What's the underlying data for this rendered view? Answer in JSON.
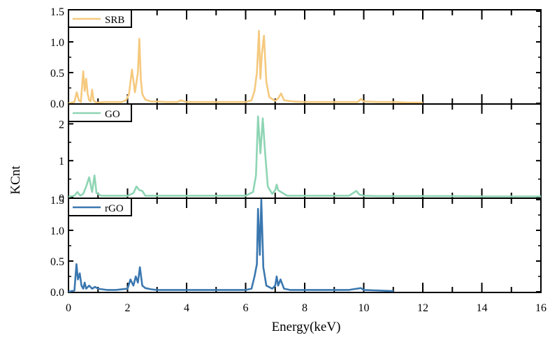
{
  "chart_data": {
    "type": "line",
    "xlabel": "Energy(keV)",
    "ylabel": "KCnt",
    "xlim": [
      0,
      16
    ],
    "x_ticks": [
      0,
      2,
      4,
      6,
      8,
      10,
      12,
      14,
      16
    ],
    "panels": [
      {
        "name": "SRB",
        "color": "#F5C97E",
        "ylim": [
          0,
          1.5
        ],
        "y_ticks": [
          0.0,
          0.5,
          1.0,
          1.5
        ],
        "y_tick_labels": [
          "0.0",
          "0.5",
          "1.0",
          "1.5"
        ],
        "legend_position": "top-left",
        "x": [
          0,
          0.2,
          0.28,
          0.35,
          0.42,
          0.5,
          0.55,
          0.6,
          0.65,
          0.7,
          0.75,
          0.8,
          0.85,
          0.9,
          1.0,
          1.2,
          1.5,
          1.8,
          1.95,
          2.05,
          2.15,
          2.25,
          2.35,
          2.4,
          2.45,
          2.5,
          2.6,
          2.8,
          3.0,
          3.3,
          3.7,
          3.8,
          4.0,
          4.5,
          5.0,
          5.5,
          6.0,
          6.2,
          6.3,
          6.38,
          6.45,
          6.5,
          6.55,
          6.62,
          6.7,
          6.8,
          7.0,
          7.1,
          7.2,
          7.3,
          7.6,
          8.0,
          8.5,
          9.0,
          9.5,
          9.8,
          9.9,
          10.0,
          10.5,
          11.0,
          11.5,
          12.0
        ],
        "y": [
          0,
          0.02,
          0.18,
          0.05,
          0.02,
          0.52,
          0.2,
          0.4,
          0.15,
          0.05,
          0.03,
          0.22,
          0.05,
          0.02,
          0.01,
          0.02,
          0.02,
          0.02,
          0.05,
          0.15,
          0.55,
          0.18,
          0.5,
          1.05,
          0.4,
          0.15,
          0.06,
          0.03,
          0.03,
          0.02,
          0.02,
          0.05,
          0.02,
          0.02,
          0.02,
          0.02,
          0.02,
          0.05,
          0.2,
          0.5,
          1.18,
          0.4,
          0.8,
          1.1,
          0.35,
          0.1,
          0.04,
          0.08,
          0.16,
          0.05,
          0.03,
          0.02,
          0.02,
          0.02,
          0.02,
          0.02,
          0.07,
          0.03,
          0.02,
          0.02,
          0.01,
          0.01
        ]
      },
      {
        "name": "GO",
        "color": "#8ED5B4",
        "ylim": [
          0,
          2.5
        ],
        "y_ticks": [
          0,
          1,
          2
        ],
        "y_tick_labels": [
          "0",
          "1",
          "2"
        ],
        "legend_position": "top-left",
        "x": [
          0,
          0.2,
          0.3,
          0.4,
          0.5,
          0.6,
          0.7,
          0.8,
          0.88,
          0.95,
          1.1,
          1.5,
          2.0,
          2.2,
          2.3,
          2.4,
          2.5,
          2.6,
          3.0,
          4.0,
          5.0,
          6.0,
          6.25,
          6.35,
          6.42,
          6.5,
          6.58,
          6.65,
          6.75,
          6.9,
          7.0,
          7.05,
          7.1,
          7.2,
          7.4,
          7.8,
          8.5,
          9.5,
          9.75,
          9.85,
          10.0,
          10.5,
          11.0,
          12.0,
          13.0,
          14.0,
          15.0,
          16.0
        ],
        "y": [
          0.02,
          0.05,
          0.15,
          0.05,
          0.1,
          0.3,
          0.55,
          0.15,
          0.6,
          0.12,
          0.05,
          0.05,
          0.05,
          0.12,
          0.3,
          0.2,
          0.18,
          0.05,
          0.05,
          0.05,
          0.05,
          0.05,
          0.15,
          0.6,
          2.2,
          1.2,
          2.15,
          1.3,
          0.3,
          0.1,
          0.2,
          0.35,
          0.2,
          0.15,
          0.05,
          0.05,
          0.05,
          0.05,
          0.18,
          0.08,
          0.05,
          0.04,
          0.04,
          0.04,
          0.04,
          0.03,
          0.03,
          0.03
        ]
      },
      {
        "name": "rGO",
        "color": "#3A77B0",
        "ylim": [
          0,
          1.5
        ],
        "y_ticks": [
          0.0,
          0.5,
          1.0,
          1.5
        ],
        "y_tick_labels": [
          "0.0",
          "0.5",
          "1.0",
          "1.5"
        ],
        "legend_position": "top-left",
        "x": [
          0,
          0.2,
          0.27,
          0.32,
          0.38,
          0.44,
          0.5,
          0.55,
          0.6,
          0.7,
          0.8,
          0.9,
          1.0,
          1.3,
          1.6,
          2.0,
          2.1,
          2.2,
          2.28,
          2.35,
          2.42,
          2.5,
          2.6,
          2.8,
          3.0,
          3.5,
          4.0,
          4.5,
          5.0,
          5.5,
          6.0,
          6.2,
          6.3,
          6.38,
          6.42,
          6.48,
          6.53,
          6.6,
          6.7,
          6.9,
          7.0,
          7.05,
          7.1,
          7.18,
          7.3,
          7.5,
          8.0,
          8.5,
          9.0,
          9.5,
          9.9,
          10.0,
          10.5,
          11.0
        ],
        "y": [
          0,
          0.02,
          0.45,
          0.2,
          0.3,
          0.1,
          0.05,
          0.15,
          0.05,
          0.1,
          0.05,
          0.08,
          0.05,
          0.03,
          0.03,
          0.05,
          0.2,
          0.1,
          0.25,
          0.15,
          0.4,
          0.1,
          0.06,
          0.04,
          0.03,
          0.03,
          0.03,
          0.03,
          0.03,
          0.03,
          0.03,
          0.05,
          0.25,
          0.45,
          1.35,
          0.6,
          1.5,
          0.4,
          0.1,
          0.05,
          0.1,
          0.25,
          0.1,
          0.2,
          0.05,
          0.03,
          0.03,
          0.03,
          0.03,
          0.03,
          0.06,
          0.03,
          0.02,
          0.01
        ]
      }
    ]
  }
}
